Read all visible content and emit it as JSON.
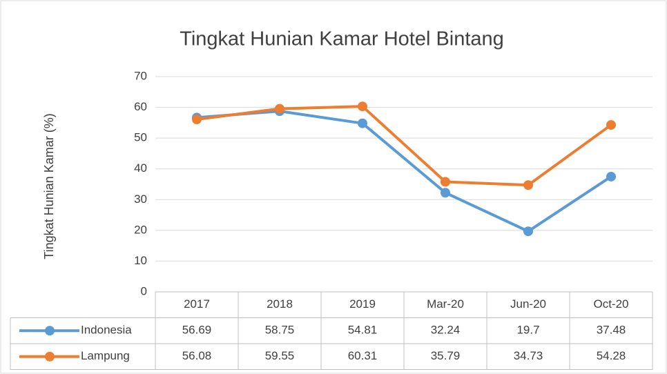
{
  "chart_data": {
    "type": "line",
    "title": "Tingkat Hunian Kamar Hotel Bintang",
    "y_label": "Tingkat Hunian Kamar (%)",
    "categories": [
      "2017",
      "2018",
      "2019",
      "Mar-20",
      "Jun-20",
      "Oct-20"
    ],
    "series": [
      {
        "name": "Indonesia",
        "color": "#5b9bd5",
        "values": [
          56.69,
          58.75,
          54.81,
          32.24,
          19.7,
          37.48
        ]
      },
      {
        "name": "Lampung",
        "color": "#ed7d31",
        "values": [
          56.08,
          59.55,
          60.31,
          35.79,
          34.73,
          54.28
        ]
      }
    ],
    "ylim": [
      0,
      70
    ],
    "yticks": [
      0,
      10,
      20,
      30,
      40,
      50,
      60,
      70
    ],
    "grid": true,
    "data_table": true
  }
}
